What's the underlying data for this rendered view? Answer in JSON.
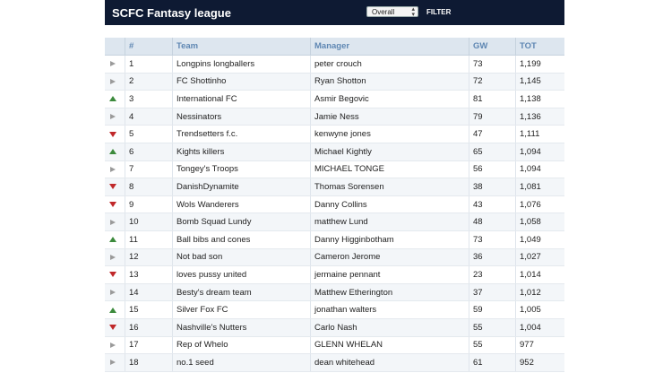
{
  "app": {
    "title": "SCFC Fantasy league"
  },
  "controls": {
    "view_select": "Overall",
    "filter_label": "FILTER"
  },
  "table": {
    "columns": [
      "#",
      "Team",
      "Manager",
      "GW",
      "TOT"
    ],
    "rows": [
      {
        "movement": "same",
        "rank": "1",
        "team": "Longpins longballers",
        "manager": "peter crouch",
        "gw": "73",
        "tot": "1,199"
      },
      {
        "movement": "same",
        "rank": "2",
        "team": "FC Shottinho",
        "manager": "Ryan Shotton",
        "gw": "72",
        "tot": "1,145"
      },
      {
        "movement": "up",
        "rank": "3",
        "team": "International FC",
        "manager": "Asmir Begovic",
        "gw": "81",
        "tot": "1,138"
      },
      {
        "movement": "same",
        "rank": "4",
        "team": "Nessinators",
        "manager": "Jamie Ness",
        "gw": "79",
        "tot": "1,136"
      },
      {
        "movement": "down",
        "rank": "5",
        "team": "Trendsetters f.c.",
        "manager": "kenwyne jones",
        "gw": "47",
        "tot": "1,111"
      },
      {
        "movement": "up",
        "rank": "6",
        "team": "Kights killers",
        "manager": "Michael Kightly",
        "gw": "65",
        "tot": "1,094"
      },
      {
        "movement": "same",
        "rank": "7",
        "team": "Tongey's Troops",
        "manager": "MICHAEL TONGE",
        "gw": "56",
        "tot": "1,094"
      },
      {
        "movement": "down",
        "rank": "8",
        "team": "DanishDynamite",
        "manager": "Thomas Sorensen",
        "gw": "38",
        "tot": "1,081"
      },
      {
        "movement": "down",
        "rank": "9",
        "team": "Wols Wanderers",
        "manager": "Danny Collins",
        "gw": "43",
        "tot": "1,076"
      },
      {
        "movement": "same",
        "rank": "10",
        "team": "Bomb Squad Lundy",
        "manager": "matthew Lund",
        "gw": "48",
        "tot": "1,058"
      },
      {
        "movement": "up",
        "rank": "11",
        "team": "Ball bibs and cones",
        "manager": "Danny Higginbotham",
        "gw": "73",
        "tot": "1,049"
      },
      {
        "movement": "same",
        "rank": "12",
        "team": "Not bad son",
        "manager": "Cameron Jerome",
        "gw": "36",
        "tot": "1,027"
      },
      {
        "movement": "down",
        "rank": "13",
        "team": "loves pussy united",
        "manager": "jermaine pennant",
        "gw": "23",
        "tot": "1,014"
      },
      {
        "movement": "same",
        "rank": "14",
        "team": "Besty's dream team",
        "manager": "Matthew Etherington",
        "gw": "37",
        "tot": "1,012"
      },
      {
        "movement": "up",
        "rank": "15",
        "team": "Silver Fox FC",
        "manager": "jonathan walters",
        "gw": "59",
        "tot": "1,005"
      },
      {
        "movement": "down",
        "rank": "16",
        "team": "Nashville's Nutters",
        "manager": "Carlo Nash",
        "gw": "55",
        "tot": "1,004"
      },
      {
        "movement": "same",
        "rank": "17",
        "team": "Rep of Whelo",
        "manager": "GLENN WHELAN",
        "gw": "55",
        "tot": "977"
      },
      {
        "movement": "same",
        "rank": "18",
        "team": "no.1 seed",
        "manager": "dean whitehead",
        "gw": "61",
        "tot": "952"
      }
    ]
  },
  "colors": {
    "header_bg": "#0e1a33",
    "up": "#3c8a3c",
    "down": "#c0282a",
    "same": "#9a9a9a",
    "column_header": "#5f87b3"
  }
}
